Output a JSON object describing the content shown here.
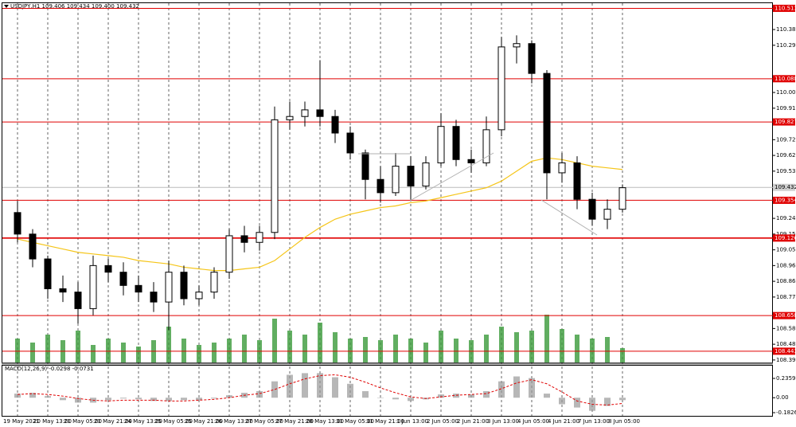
{
  "chart_data": [
    {
      "type": "candlestick",
      "title": "USDJPY,H1 109.406 109.434 109.400 109.432",
      "categories": [
        "19 May 2021",
        null,
        "20 May 13:00",
        null,
        "21 May 05:00",
        null,
        "21 May 21:00",
        null,
        "24 May 13:00",
        null,
        "25 May 05:00",
        null,
        "25 May 21:00",
        null,
        "26 May 13:00",
        null,
        "27 May 05:00",
        null,
        "27 May 21:00",
        null,
        "28 May 13:00",
        null,
        "31 May 05:00",
        null,
        "31 May 21:00",
        null,
        "1 Jun 13:00",
        null,
        "2 Jun 05:00",
        null,
        "2 Jun 21:00",
        null,
        "3 Jun 13:00",
        null,
        "4 Jun 05:00",
        null,
        "4 Jun 21:00",
        null,
        "7 Jun 13:00",
        null,
        "8 Jun 05:00"
      ],
      "open": [
        109.28,
        109.15,
        109.0,
        108.82,
        108.8,
        108.7,
        108.96,
        108.92,
        108.84,
        108.8,
        108.74,
        108.92,
        108.76,
        108.8,
        108.92,
        109.14,
        109.1,
        109.16,
        109.84,
        109.86,
        109.9,
        109.86,
        109.76,
        109.64,
        109.48,
        109.4,
        109.56,
        109.44,
        109.58,
        109.8,
        109.6,
        109.58,
        109.78,
        110.28,
        110.3,
        110.12,
        109.52,
        109.58,
        109.36,
        109.24,
        109.3
      ],
      "high": [
        109.35,
        109.18,
        109.02,
        108.9,
        108.86,
        109.02,
        109.0,
        108.98,
        108.9,
        108.86,
        108.99,
        108.96,
        108.84,
        108.95,
        109.18,
        109.2,
        109.2,
        109.92,
        109.95,
        109.95,
        110.2,
        109.9,
        109.8,
        109.66,
        109.56,
        109.64,
        109.62,
        109.62,
        109.88,
        109.84,
        109.66,
        109.86,
        110.34,
        110.35,
        110.32,
        110.14,
        109.64,
        109.62,
        109.4,
        109.36,
        109.45
      ],
      "low": [
        109.1,
        108.95,
        108.76,
        108.74,
        108.61,
        108.66,
        108.86,
        108.78,
        108.74,
        108.68,
        108.57,
        108.72,
        108.72,
        108.76,
        108.88,
        109.04,
        109.05,
        109.12,
        109.78,
        109.8,
        109.8,
        109.7,
        109.6,
        109.36,
        109.34,
        109.38,
        109.36,
        109.42,
        109.56,
        109.56,
        109.52,
        109.56,
        109.74,
        110.18,
        110.06,
        109.36,
        109.46,
        109.3,
        109.2,
        109.18,
        109.28
      ],
      "close": [
        109.15,
        109.0,
        108.82,
        108.8,
        108.7,
        108.96,
        108.92,
        108.84,
        108.8,
        108.74,
        108.92,
        108.76,
        108.8,
        108.92,
        109.14,
        109.1,
        109.16,
        109.84,
        109.86,
        109.9,
        109.86,
        109.76,
        109.64,
        109.48,
        109.4,
        109.56,
        109.44,
        109.58,
        109.8,
        109.6,
        109.58,
        109.78,
        110.28,
        110.3,
        110.12,
        109.52,
        109.58,
        109.36,
        109.24,
        109.3,
        109.43
      ],
      "moving_average": {
        "color": "#f5c518",
        "values": [
          109.12,
          109.1,
          109.08,
          109.06,
          109.04,
          109.03,
          109.02,
          109.01,
          108.99,
          108.98,
          108.97,
          108.95,
          108.94,
          108.93,
          108.93,
          108.94,
          108.95,
          108.99,
          109.06,
          109.13,
          109.19,
          109.24,
          109.27,
          109.29,
          109.31,
          109.32,
          109.34,
          109.35,
          109.37,
          109.39,
          109.41,
          109.43,
          109.47,
          109.53,
          109.59,
          109.61,
          109.6,
          109.58,
          109.56,
          109.55,
          109.54
        ]
      },
      "volume": {
        "color": "#3a9a3a",
        "values": [
          30,
          25,
          35,
          28,
          40,
          22,
          30,
          25,
          20,
          28,
          45,
          30,
          22,
          25,
          30,
          35,
          28,
          55,
          40,
          35,
          50,
          38,
          30,
          32,
          28,
          35,
          30,
          25,
          40,
          30,
          28,
          35,
          45,
          38,
          40,
          60,
          42,
          35,
          30,
          32,
          18
        ]
      },
      "levels": [
        {
          "value": 110.513,
          "color": "#e00000"
        },
        {
          "value": 110.088,
          "color": "#e00000"
        },
        {
          "value": 109.827,
          "color": "#e00000"
        },
        {
          "value": 109.354,
          "color": "#e00000"
        },
        {
          "value": 109.126,
          "color": "#e00000"
        },
        {
          "value": 108.658,
          "color": "#e00000"
        },
        {
          "value": 108.443,
          "color": "#e00000"
        }
      ],
      "current_price": 109.432,
      "ylim": [
        108.375,
        110.544
      ],
      "yticks": [
        110.385,
        {
          "value": 110.29,
          "label": "110.290"
        },
        110.005,
        {
          "value": 109.91,
          "label": "109.910"
        },
        {
          "value": 109.72,
          "label": "109.720"
        },
        109.625,
        {
          "value": 109.53,
          "label": "109.530"
        },
        109.245,
        {
          "value": 109.15,
          "label": "109.150"
        },
        109.055,
        {
          "value": 108.96,
          "label": "108.960"
        },
        108.865,
        {
          "value": 108.77,
          "label": "108.770"
        },
        {
          "value": 108.58,
          "label": "108.580"
        },
        108.485,
        {
          "value": 108.39,
          "label": "108.390"
        }
      ]
    },
    {
      "type": "macd",
      "title": "MACD(12,26,9) -0.0298 -0.0731",
      "histogram": {
        "color": "#999999",
        "values": [
          0.05,
          0.06,
          0.02,
          -0.03,
          -0.06,
          -0.06,
          -0.03,
          -0.01,
          -0.02,
          -0.04,
          -0.04,
          -0.03,
          -0.03,
          -0.01,
          0.03,
          0.06,
          0.08,
          0.2,
          0.28,
          0.3,
          0.3,
          0.25,
          0.17,
          0.08,
          0.0,
          -0.02,
          -0.04,
          -0.02,
          0.04,
          0.05,
          0.04,
          0.08,
          0.2,
          0.26,
          0.24,
          0.05,
          -0.08,
          -0.12,
          -0.16,
          -0.1,
          -0.03
        ]
      },
      "signal": {
        "color": "#e00000",
        "values": [
          0.04,
          0.05,
          0.04,
          0.02,
          -0.01,
          -0.03,
          -0.04,
          -0.03,
          -0.03,
          -0.03,
          -0.04,
          -0.04,
          -0.03,
          -0.02,
          0.0,
          0.03,
          0.05,
          0.1,
          0.17,
          0.23,
          0.27,
          0.28,
          0.25,
          0.19,
          0.12,
          0.06,
          0.01,
          -0.01,
          0.01,
          0.03,
          0.04,
          0.05,
          0.11,
          0.18,
          0.22,
          0.17,
          0.07,
          -0.04,
          -0.08,
          -0.09,
          -0.07
        ]
      },
      "ylim": [
        -0.2215,
        0.3916
      ],
      "yticks": [
        0.2359,
        {
          "value": 0,
          "label": "0.00"
        },
        -0.1826
      ]
    }
  ]
}
